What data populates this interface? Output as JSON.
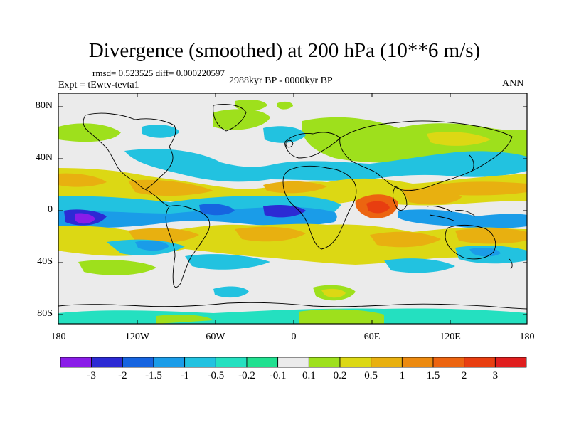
{
  "title": "Divergence (smoothed) at 200 hPa (10**6 m/s)",
  "stats": "rmsd= 0.523525 diff= 0.000220597",
  "experiment": "Expt = tEwtv-tevta1",
  "period": "2988kyr BP - 0000kyr BP",
  "season": "ANN",
  "lat_labels": [
    "80N",
    "40N",
    "0",
    "40S",
    "80S"
  ],
  "lon_labels": [
    "180",
    "120W",
    "60W",
    "0",
    "60E",
    "120E",
    "180"
  ],
  "colorbar": {
    "colors": [
      "#8a1ce8",
      "#2c2ad4",
      "#1664e0",
      "#1a9ce8",
      "#22c2e0",
      "#24e0c0",
      "#20e090",
      "#ebebeb",
      "#9ee01c",
      "#dcd814",
      "#e8b010",
      "#ec8a10",
      "#ec6410",
      "#e83e10",
      "#e01e1e"
    ],
    "labels": [
      "-3",
      "-2",
      "-1.5",
      "-1",
      "-0.5",
      "-0.2",
      "-0.1",
      "0.1",
      "0.2",
      "0.5",
      "1",
      "1.5",
      "2",
      "3"
    ]
  },
  "map_colors": {
    "background": "#ebebeb",
    "coast": "#000000"
  }
}
